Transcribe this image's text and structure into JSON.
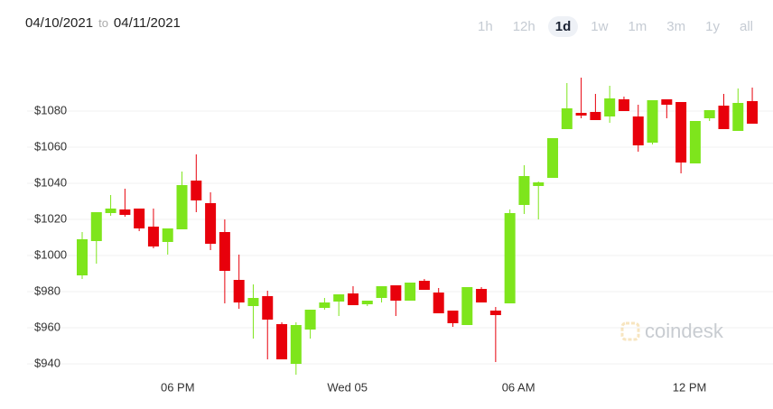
{
  "header": {
    "from": "04/10/2021",
    "to_word": "to",
    "to": "04/11/2021",
    "ranges": [
      "1h",
      "12h",
      "1d",
      "1w",
      "1m",
      "3m",
      "1y",
      "all"
    ],
    "selected_range": "1d",
    "watermark": "coindesk"
  },
  "chart_data": {
    "type": "candlestick",
    "up_color": "#7ee51c",
    "down_color": "#e8000b",
    "grid": true,
    "ylim": [
      931.5,
      1111.5
    ],
    "yticks": [
      {
        "value": 940,
        "label": "$940"
      },
      {
        "value": 960,
        "label": "$960"
      },
      {
        "value": 980,
        "label": "$980"
      },
      {
        "value": 1000,
        "label": "$1000"
      },
      {
        "value": 1020,
        "label": "$1020"
      },
      {
        "value": 1040,
        "label": "$1040"
      },
      {
        "value": 1060,
        "label": "$1060"
      },
      {
        "value": 1080,
        "label": "$1080"
      }
    ],
    "xlim": [
      -3.8,
      48.2
    ],
    "xticks": [
      {
        "value": 6.7,
        "label": "06 PM"
      },
      {
        "value": 18.6,
        "label": "Wed 05"
      },
      {
        "value": 30.6,
        "label": "06 AM"
      },
      {
        "value": 42.6,
        "label": "12 PM"
      }
    ],
    "open": [
      989,
      1008,
      1023.5,
      1025.5,
      1026,
      1016,
      1007.5,
      1014.5,
      1041.5,
      1029,
      1013,
      986.5,
      972,
      977.5,
      962,
      940,
      959,
      971,
      974.5,
      979,
      973,
      976.5,
      983.5,
      975,
      986,
      979.5,
      969.5,
      961.5,
      981.5,
      969.5,
      973.5,
      1028,
      1038.5,
      1043,
      1070,
      1079,
      1079.5,
      1077,
      1086.5,
      1077,
      1062.5,
      1086.5,
      1085,
      1051,
      1076,
      1083,
      1069,
      1085.5
    ],
    "high": [
      1013,
      1024,
      1033.5,
      1037,
      1026,
      1026,
      1015,
      1046.5,
      1056,
      1035,
      1020,
      1000.5,
      984,
      980.5,
      963,
      963,
      970,
      976.5,
      978.5,
      983,
      975,
      983,
      983.5,
      985,
      987,
      982,
      969.5,
      982.5,
      982.5,
      971.5,
      1025.5,
      1050,
      1041,
      1065,
      1095.5,
      1098.5,
      1089.5,
      1094,
      1088,
      1083.5,
      1086,
      1086.5,
      1085,
      1074.5,
      1080.5,
      1089.5,
      1092.5,
      1093
    ],
    "low": [
      987,
      995.5,
      1022,
      1021.5,
      1013.5,
      1004,
      1000.5,
      1014.5,
      1024,
      1003,
      973.5,
      970.5,
      954,
      942.5,
      942.5,
      934,
      954,
      970,
      966.5,
      972.5,
      972,
      974,
      966.5,
      975,
      981,
      968,
      960.5,
      961.5,
      974,
      941,
      973.5,
      1023,
      1020,
      1043,
      1070,
      1076,
      1075,
      1073.5,
      1080,
      1057.5,
      1061.5,
      1076,
      1045.5,
      1051,
      1074.5,
      1070,
      1069,
      1073
    ],
    "close": [
      1009,
      1024,
      1026,
      1022.5,
      1015,
      1005,
      1015,
      1039,
      1030.5,
      1006.5,
      991.5,
      974,
      976.5,
      964.5,
      942.5,
      961.5,
      970,
      974,
      978.5,
      972.5,
      975,
      983,
      975,
      985,
      981,
      968,
      962.5,
      982.5,
      974,
      967,
      1023.5,
      1044,
      1040.5,
      1065,
      1081.5,
      1077.5,
      1075,
      1087,
      1080,
      1061,
      1086,
      1083.5,
      1051.5,
      1074.5,
      1080.5,
      1070,
      1084.5,
      1073
    ]
  }
}
